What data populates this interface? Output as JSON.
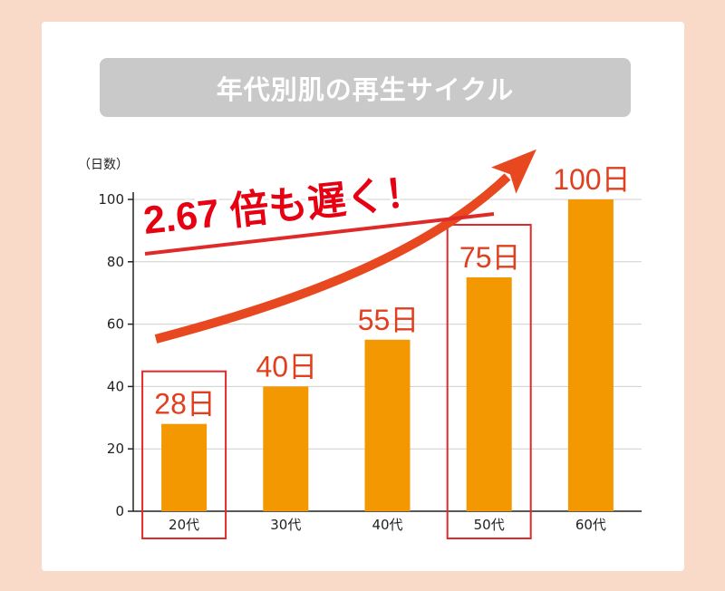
{
  "title": "年代別肌の再生サイクル",
  "callout": "2.67 倍も遅く！",
  "colors": {
    "bar": "#f39800",
    "arrow": "#e84820",
    "highlight": "#e02a2a",
    "data_label": "#e0401f",
    "callout": "#e60012",
    "background": "#f9d9c8",
    "title_bar": "#c9c9c9"
  },
  "chart_data": {
    "type": "bar",
    "title": "年代別肌の再生サイクル",
    "ylabel": "（日数）",
    "xlabel": "",
    "categories": [
      "20代",
      "30代",
      "40代",
      "50代",
      "60代"
    ],
    "values": [
      28,
      40,
      55,
      75,
      100
    ],
    "data_labels": [
      "28日",
      "40日",
      "55日",
      "75日",
      "100日"
    ],
    "yticks": [
      0,
      20,
      40,
      60,
      80,
      100
    ],
    "ylim": [
      0,
      100
    ],
    "grid": true,
    "highlighted_categories": [
      "20代",
      "50代"
    ],
    "annotation": "2.67 倍も遅く！"
  }
}
